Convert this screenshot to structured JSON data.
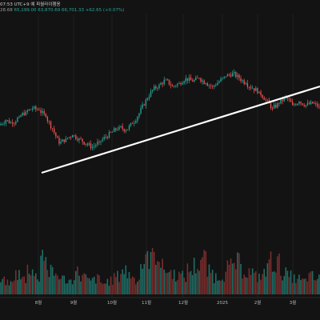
{
  "header": {
    "line1_prefix": "07:53",
    "line1_timezone": "UTC+9",
    "line1_menu_item": "예",
    "line1_symbol": "파월라이햄옹",
    "line2_first": "28.68",
    "line2_open": "65,199.00",
    "line2_close_a": "63,870.69",
    "line2_close_b": "66,701.33",
    "line2_change": "+62.65 (+0.07%)"
  },
  "colors": {
    "background": "#131313",
    "up": "#26a69a",
    "down": "#ef5350",
    "trendline": "#ffffff",
    "text": "#b8b8b8"
  },
  "chart_data": {
    "type": "candlestick",
    "x_tick_labels": [
      "8월",
      "9월",
      "10월",
      "11월",
      "12월",
      "2025",
      "2월",
      "3월"
    ],
    "annotations": [
      "support trendline"
    ],
    "price_series": [
      {
        "o": 0.35,
        "c": 0.38
      },
      {
        "o": 0.38,
        "c": 0.36
      },
      {
        "o": 0.36,
        "c": 0.4
      },
      {
        "o": 0.4,
        "c": 0.43
      },
      {
        "o": 0.43,
        "c": 0.45
      },
      {
        "o": 0.45,
        "c": 0.44
      },
      {
        "o": 0.44,
        "c": 0.4
      },
      {
        "o": 0.4,
        "c": 0.33
      },
      {
        "o": 0.33,
        "c": 0.24
      },
      {
        "o": 0.24,
        "c": 0.27
      },
      {
        "o": 0.27,
        "c": 0.29
      },
      {
        "o": 0.29,
        "c": 0.27
      },
      {
        "o": 0.27,
        "c": 0.24
      },
      {
        "o": 0.24,
        "c": 0.22
      },
      {
        "o": 0.22,
        "c": 0.25
      },
      {
        "o": 0.25,
        "c": 0.28
      },
      {
        "o": 0.28,
        "c": 0.31
      },
      {
        "o": 0.31,
        "c": 0.34
      },
      {
        "o": 0.34,
        "c": 0.32
      },
      {
        "o": 0.32,
        "c": 0.36
      },
      {
        "o": 0.36,
        "c": 0.42
      },
      {
        "o": 0.42,
        "c": 0.5
      },
      {
        "o": 0.5,
        "c": 0.56
      },
      {
        "o": 0.56,
        "c": 0.59
      },
      {
        "o": 0.59,
        "c": 0.62
      },
      {
        "o": 0.62,
        "c": 0.58
      },
      {
        "o": 0.58,
        "c": 0.6
      },
      {
        "o": 0.6,
        "c": 0.63
      },
      {
        "o": 0.63,
        "c": 0.61
      },
      {
        "o": 0.61,
        "c": 0.63
      },
      {
        "o": 0.63,
        "c": 0.6
      },
      {
        "o": 0.6,
        "c": 0.58
      },
      {
        "o": 0.58,
        "c": 0.61
      },
      {
        "o": 0.61,
        "c": 0.64
      },
      {
        "o": 0.64,
        "c": 0.66
      },
      {
        "o": 0.66,
        "c": 0.63
      },
      {
        "o": 0.63,
        "c": 0.6
      },
      {
        "o": 0.6,
        "c": 0.57
      },
      {
        "o": 0.57,
        "c": 0.55
      },
      {
        "o": 0.55,
        "c": 0.5
      },
      {
        "o": 0.5,
        "c": 0.45
      },
      {
        "o": 0.45,
        "c": 0.48
      },
      {
        "o": 0.48,
        "c": 0.52
      },
      {
        "o": 0.52,
        "c": 0.47
      },
      {
        "o": 0.47,
        "c": 0.49
      },
      {
        "o": 0.49,
        "c": 0.47
      },
      {
        "o": 0.47,
        "c": 0.48
      },
      {
        "o": 0.48,
        "c": 0.46
      }
    ],
    "volume_series": [
      0.3,
      0.25,
      0.45,
      0.35,
      0.6,
      0.4,
      0.95,
      0.5,
      0.45,
      0.35,
      0.3,
      0.5,
      0.4,
      0.3,
      0.35,
      0.25,
      0.3,
      0.4,
      0.55,
      0.45,
      0.35,
      0.7,
      0.85,
      0.95,
      0.6,
      0.5,
      0.45,
      0.4,
      0.55,
      0.65,
      0.8,
      0.5,
      0.4,
      0.45,
      0.6,
      0.7,
      0.55,
      0.5,
      0.4,
      0.45,
      0.75,
      0.7,
      0.5,
      0.4,
      0.35,
      0.3,
      0.4,
      0.35
    ]
  }
}
